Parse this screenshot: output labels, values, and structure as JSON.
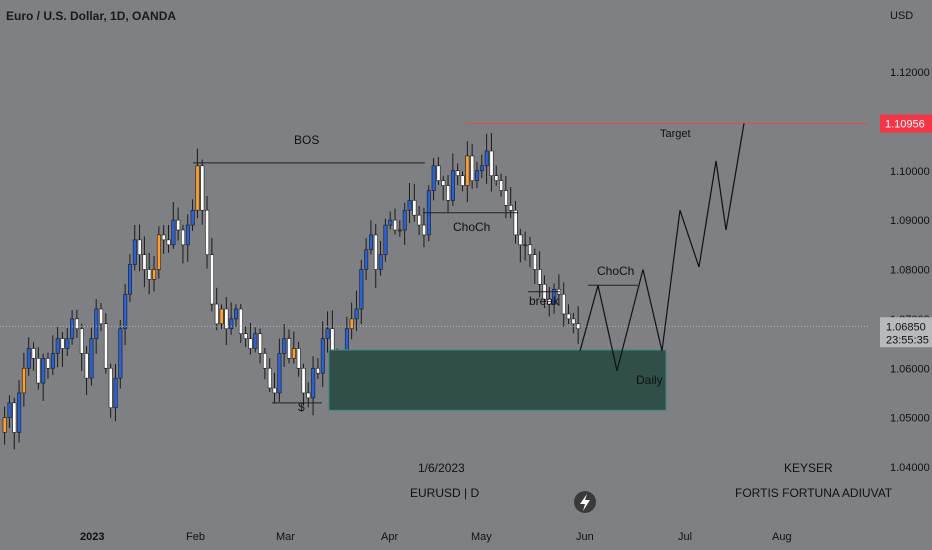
{
  "header": {
    "title": "Euro / U.S. Dollar, 1D, OANDA",
    "currency": "USD"
  },
  "price_axis": {
    "labels": [
      "1.12000",
      "1.11000",
      "1.10956",
      "1.10000",
      "1.09000",
      "1.08000",
      "1.07000",
      "1.06850",
      "1.06000",
      "1.05000",
      "1.04000"
    ],
    "current_price": "1.06850",
    "countdown": "23:55:35",
    "target_price": "1.10956"
  },
  "time_axis": {
    "labels": [
      "2023",
      "Feb",
      "Mar",
      "Apr",
      "May",
      "Jun",
      "Jul",
      "Aug"
    ]
  },
  "annotations": {
    "bos": "BOS",
    "choch_top": "ChoCh",
    "choch_right": "ChoCh",
    "break": "break",
    "s_label": "$",
    "target": "Target",
    "daily": "Daily"
  },
  "footer": {
    "date": "1/6/2023",
    "symbol": "EURUSD | D",
    "author": "KEYSER",
    "motto": "FORTIS FORTUNA ADIUVAT"
  },
  "colors": {
    "background": "#7f8083",
    "bull": "#2a62d6",
    "bear": "#ffffff",
    "bull_alt": "#ff9f2e",
    "demand_zone": "#2f4f48",
    "demand_border": "#3d8a8a",
    "target_line": "#e0503a",
    "target_tag": "#f23645"
  },
  "chart_data": {
    "type": "candlestick",
    "symbol": "EURUSD",
    "timeframe": "1D",
    "ylim": [
      1.04,
      1.125
    ],
    "y_ticks": [
      1.04,
      1.05,
      1.06,
      1.07,
      1.08,
      1.09,
      1.1,
      1.11,
      1.12
    ],
    "x_ticks": [
      "2023",
      "Feb",
      "Mar",
      "Apr",
      "May",
      "Jun",
      "Jul",
      "Aug"
    ],
    "current_price": 1.0685,
    "target_price": 1.10956,
    "levels": [
      {
        "name": "BOS",
        "price": 1.1016
      },
      {
        "name": "ChoCh",
        "price": 1.0915
      },
      {
        "name": "ChoCh",
        "price": 1.0768
      }
    ],
    "zone": {
      "name": "Daily",
      "top": 1.0637,
      "bottom": 1.0515
    },
    "projection": [
      1.0635,
      1.0768,
      1.0595,
      1.08,
      1.0635,
      1.092,
      1.0805,
      1.102,
      1.088,
      1.1096
    ],
    "closes": [
      1.05,
      1.053,
      1.047,
      1.055,
      1.06,
      1.064,
      1.062,
      1.057,
      1.062,
      1.06,
      1.063,
      1.066,
      1.064,
      1.066,
      1.07,
      1.068,
      1.063,
      1.058,
      1.066,
      1.072,
      1.069,
      1.06,
      1.052,
      1.058,
      1.068,
      1.075,
      1.081,
      1.086,
      1.083,
      1.08,
      1.078,
      1.08,
      1.087,
      1.086,
      1.085,
      1.09,
      1.088,
      1.085,
      1.089,
      1.092,
      1.101,
      1.092,
      1.083,
      1.073,
      1.069,
      1.072,
      1.068,
      1.07,
      1.072,
      1.067,
      1.066,
      1.064,
      1.067,
      1.063,
      1.06,
      1.056,
      1.055,
      1.063,
      1.066,
      1.062,
      1.064,
      1.06,
      1.055,
      1.054,
      1.06,
      1.059,
      1.066,
      1.068,
      1.062,
      1.057,
      1.06,
      1.068,
      1.07,
      1.072,
      1.08,
      1.084,
      1.087,
      1.08,
      1.083,
      1.089,
      1.09,
      1.088,
      1.088,
      1.092,
      1.094,
      1.091,
      1.089,
      1.087,
      1.096,
      1.101,
      1.098,
      1.097,
      1.094,
      1.1,
      1.099,
      1.097,
      1.103,
      1.098,
      1.1,
      1.101,
      1.104,
      1.099,
      1.098,
      1.096,
      1.093,
      1.092,
      1.087,
      1.085,
      1.085,
      1.083,
      1.08,
      1.077,
      1.074,
      1.073,
      1.076,
      1.075,
      1.071,
      1.07,
      1.069,
      1.068
    ]
  }
}
